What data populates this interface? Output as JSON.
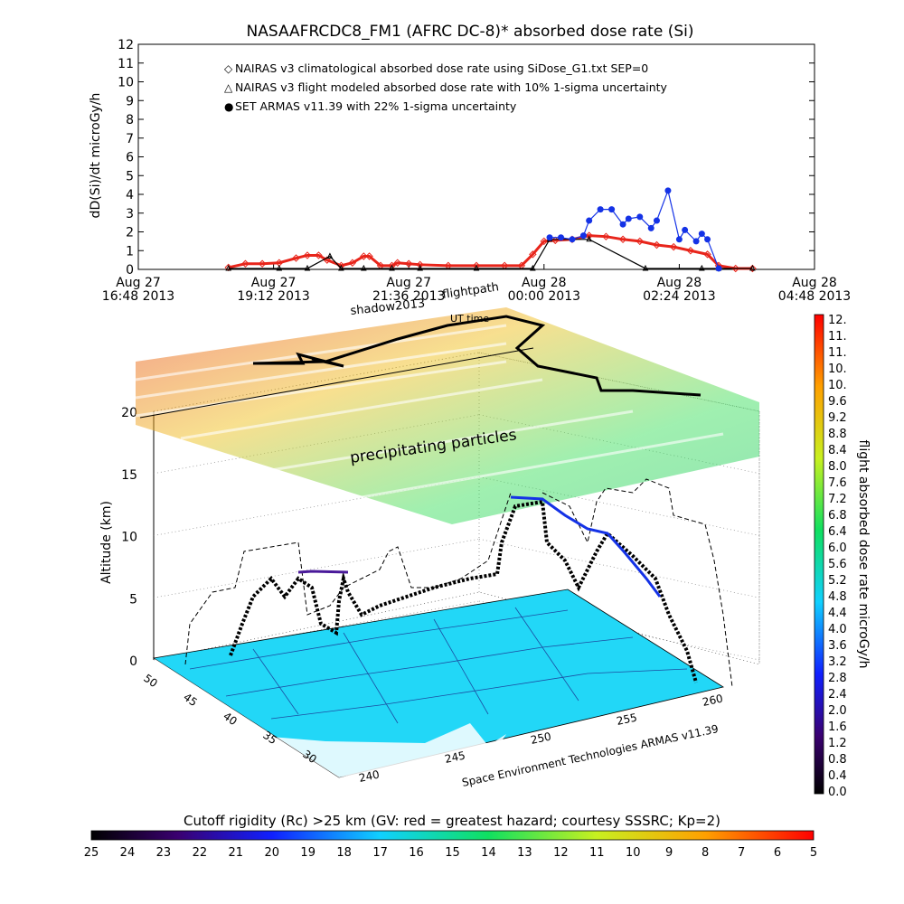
{
  "title": "NASAAFRCDC8_FM1 (AFRC DC-8)* absorbed dose rate (Si)",
  "top_chart": {
    "ylabel": "dD(Si)/dt microGy/h",
    "yticks": [
      "0",
      "1",
      "2",
      "3",
      "4",
      "5",
      "6",
      "7",
      "8",
      "9",
      "10",
      "11",
      "12"
    ],
    "xticks": [
      {
        "day": "Aug 27",
        "time": "16:48 2013"
      },
      {
        "day": "Aug 27",
        "time": "19:12 2013"
      },
      {
        "day": "Aug 27",
        "time": "21:36 2013"
      },
      {
        "day": "Aug 28",
        "time": "00:00 2013"
      },
      {
        "day": "Aug 28",
        "time": "02:24 2013"
      },
      {
        "day": "Aug 28",
        "time": "04:48 2013"
      }
    ],
    "legend": [
      {
        "marker": "◇",
        "text": "NAIRAS v3 climatological absorbed dose rate using SiDose_G1.txt SEP=0",
        "color": "#e8251b"
      },
      {
        "marker": "△",
        "text": "NAIRAS v3 flight modeled absorbed dose rate with 10% 1-sigma uncertainty",
        "color": "#000000"
      },
      {
        "marker": "●",
        "text": "SET ARMAS v11.39 with 22% 1-sigma uncertainty",
        "color": "#1432e6"
      }
    ]
  },
  "chart_data": [
    {
      "type": "line",
      "title": "NASAAFRCDC8_FM1 (AFRC DC-8)* absorbed dose rate (Si)",
      "xlabel": "",
      "ylabel": "dD(Si)/dt microGy/h",
      "x_unit": "hours since Aug 27 16:48 2013",
      "xlim": [
        0,
        12
      ],
      "ylim": [
        0,
        12
      ],
      "series": [
        {
          "name": "NAIRAS v3 climatological absorbed dose rate using SiDose_G1.txt SEP=0",
          "color": "#e8251b",
          "x": [
            1.6,
            1.9,
            2.2,
            2.5,
            2.8,
            3.0,
            3.2,
            3.35,
            3.6,
            3.8,
            4.0,
            4.1,
            4.3,
            4.5,
            4.6,
            4.8,
            5.0,
            5.5,
            6.0,
            6.5,
            6.8,
            7.0,
            7.2,
            7.4,
            7.7,
            8.0,
            8.3,
            8.6,
            8.9,
            9.2,
            9.5,
            9.8,
            10.1,
            10.3,
            10.6,
            10.9
          ],
          "y": [
            0.1,
            0.3,
            0.3,
            0.35,
            0.6,
            0.75,
            0.75,
            0.5,
            0.2,
            0.35,
            0.7,
            0.7,
            0.2,
            0.2,
            0.35,
            0.3,
            0.25,
            0.2,
            0.2,
            0.2,
            0.2,
            0.8,
            1.5,
            1.55,
            1.6,
            1.8,
            1.75,
            1.6,
            1.5,
            1.3,
            1.2,
            1.0,
            0.8,
            0.2,
            0.05,
            0.05
          ]
        },
        {
          "name": "NAIRAS v3 flight modeled absorbed dose rate with 10% 1-sigma uncertainty",
          "color": "#000000",
          "x": [
            1.6,
            2.5,
            3.0,
            3.4,
            3.6,
            4.0,
            4.5,
            5.0,
            6.0,
            7.0,
            7.3,
            8.0,
            9.0,
            10.0,
            10.3,
            10.9
          ],
          "y": [
            0.05,
            0.05,
            0.05,
            0.7,
            0.05,
            0.05,
            0.05,
            0.05,
            0.05,
            0.05,
            1.6,
            1.6,
            0.05,
            0.05,
            0.05,
            0.05
          ]
        },
        {
          "name": "SET ARMAS v11.39 with 22% 1-sigma uncertainty",
          "color": "#1432e6",
          "x": [
            7.3,
            7.5,
            7.7,
            7.9,
            8.0,
            8.2,
            8.4,
            8.6,
            8.7,
            8.9,
            9.1,
            9.2,
            9.4,
            9.6,
            9.7,
            9.9,
            10.0,
            10.1,
            10.3
          ],
          "y": [
            1.7,
            1.7,
            1.6,
            1.8,
            2.6,
            3.2,
            3.2,
            2.4,
            2.7,
            2.8,
            2.2,
            2.6,
            4.2,
            1.6,
            2.1,
            1.5,
            1.9,
            1.6,
            0.05
          ]
        }
      ]
    },
    {
      "type": "scatter",
      "title": "",
      "xlabel": "",
      "ylabel": "Altitude (km)",
      "zticks": [
        "0",
        "5",
        "10",
        "15",
        "20"
      ],
      "lon_ticks": [
        "240",
        "245",
        "250",
        "255",
        "260"
      ],
      "lat_ticks": [
        "30",
        "35",
        "40",
        "45",
        "50"
      ]
    }
  ],
  "scene": {
    "ylabel": "Altitude (km)",
    "zticks": [
      "0",
      "5",
      "10",
      "15",
      "20"
    ],
    "lon_ticks": [
      "240",
      "245",
      "250",
      "255",
      "260"
    ],
    "lat_ticks": [
      "30",
      "35",
      "40",
      "45",
      "50"
    ],
    "annotations": {
      "shadow": "shadow2013",
      "flightpath": "flightpath",
      "ut_time": "UT time",
      "precip": "precipitating particles",
      "credit": "Space Environment Technologies ARMAS v11.39"
    },
    "colors": {
      "map": "#22d7f7",
      "land_line": "#1a2a8c"
    }
  },
  "right_colorbar": {
    "label": "flight absorbed dose rate microGy/h",
    "ticks": [
      "0.0",
      "0.4",
      "0.8",
      "1.2",
      "1.6",
      "2.0",
      "2.4",
      "2.8",
      "3.2",
      "3.6",
      "4.0",
      "4.4",
      "4.8",
      "5.2",
      "5.6",
      "6.0",
      "6.4",
      "6.8",
      "7.2",
      "7.6",
      "8.0",
      "8.4",
      "8.8",
      "9.2",
      "9.6",
      "10.",
      "10.",
      "11.",
      "11.",
      "12."
    ]
  },
  "bottom_colorbar": {
    "label": "Cutoff rigidity (Rc) >25 km (GV: red = greatest hazard; courtesy SSSRC; Kp=2)",
    "ticks": [
      "25",
      "24",
      "23",
      "22",
      "21",
      "20",
      "19",
      "18",
      "17",
      "16",
      "15",
      "14",
      "13",
      "12",
      "11",
      "10",
      "9",
      "8",
      "7",
      "6",
      "5"
    ]
  }
}
